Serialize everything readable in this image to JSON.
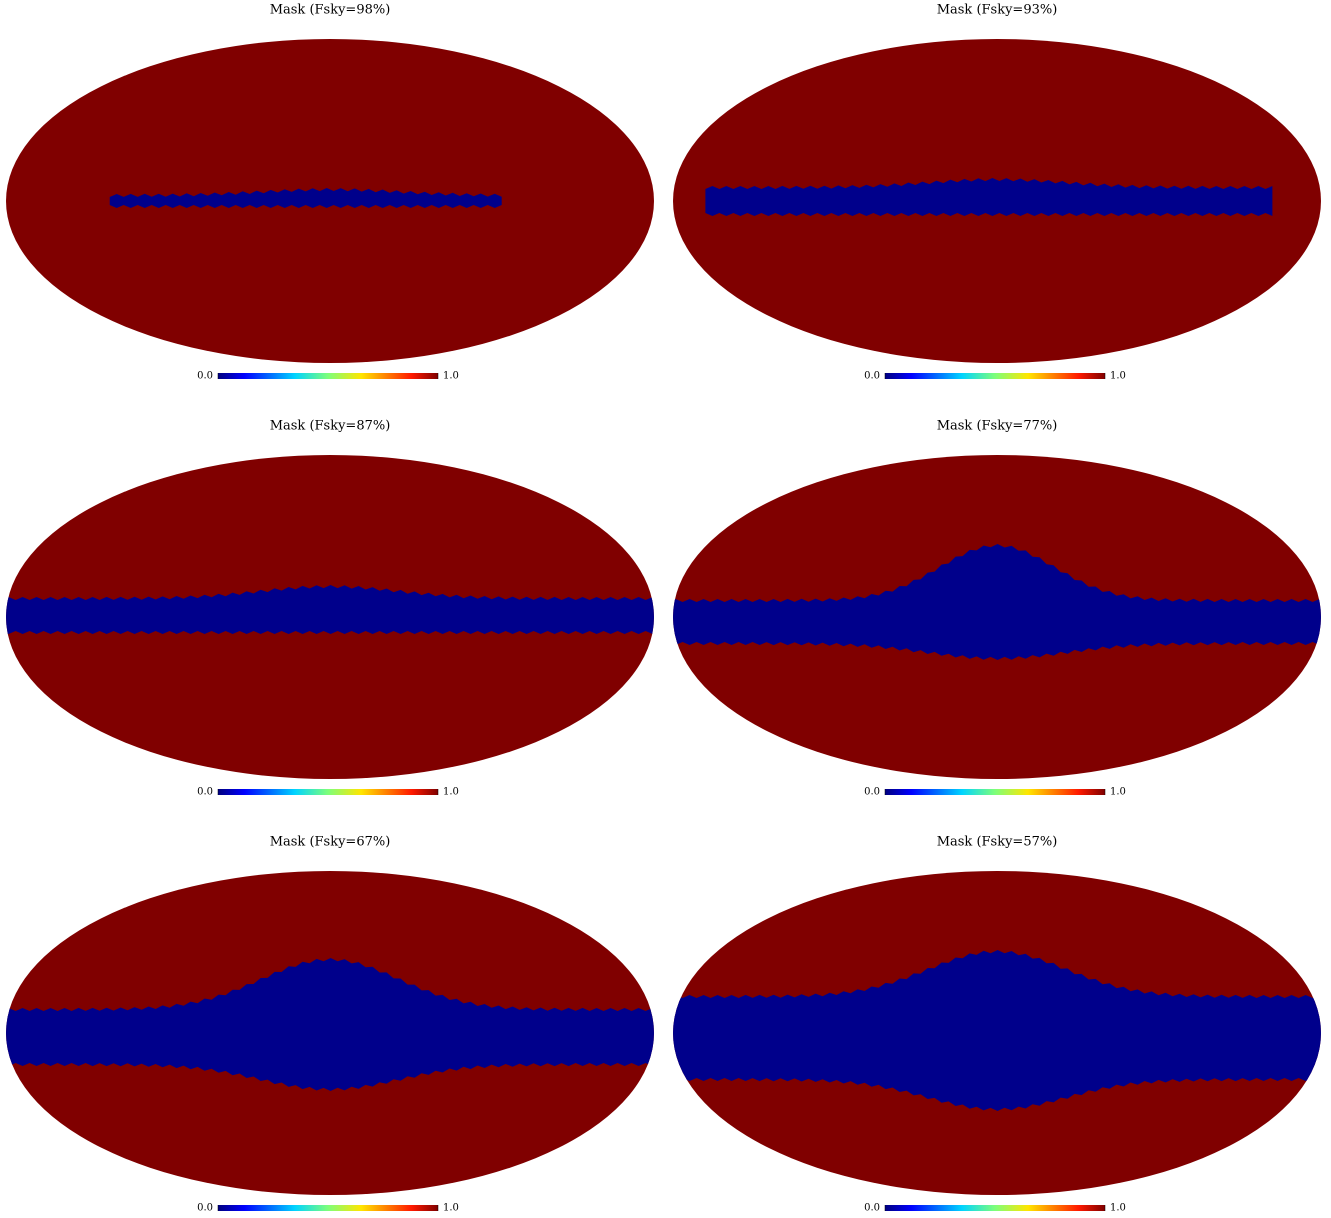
{
  "panels": [
    {
      "title": "Mask (Fsky=98%)",
      "colorbar": {
        "ticks": [
          {
            "value": 0,
            "label": "0.0"
          },
          {
            "value": 1,
            "label": "1.0"
          }
        ]
      }
    },
    {
      "title": "Mask (Fsky=93%)",
      "colorbar": {
        "ticks": [
          {
            "value": 0,
            "label": "0.0"
          },
          {
            "value": 1,
            "label": "1.0"
          }
        ]
      }
    },
    {
      "title": "Mask (Fsky=87%)",
      "colorbar": {
        "ticks": [
          {
            "value": 0,
            "label": "0.0"
          },
          {
            "value": 1,
            "label": "1.0"
          }
        ]
      }
    },
    {
      "title": "Mask (Fsky=77%)",
      "colorbar": {
        "ticks": [
          {
            "value": 0,
            "label": "0.0"
          },
          {
            "value": 1,
            "label": "1.0"
          }
        ]
      }
    },
    {
      "title": "Mask (Fsky=67%)",
      "colorbar": {
        "ticks": [
          {
            "value": 0,
            "label": "0.0"
          },
          {
            "value": 1,
            "label": "1.0"
          }
        ]
      }
    },
    {
      "title": "Mask (Fsky=57%)",
      "colorbar": {
        "ticks": [
          {
            "value": 0,
            "label": "0.0"
          },
          {
            "value": 1,
            "label": "1.0"
          }
        ]
      }
    }
  ]
}
